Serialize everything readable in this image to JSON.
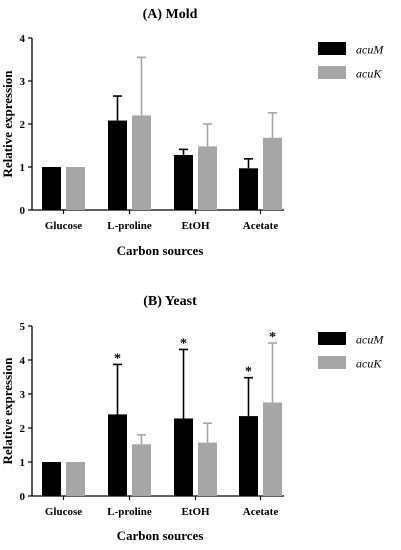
{
  "chart_data": [
    {
      "type": "bar",
      "title": "(A) Mold",
      "xlabel": "Carbon sources",
      "ylabel": "Relative expression",
      "ylim": [
        0,
        4
      ],
      "yticks": [
        0,
        1,
        2,
        3,
        4
      ],
      "categories": [
        "Glucose",
        "L-proline",
        "EtOH",
        "Acetate"
      ],
      "series": [
        {
          "name": "acuM",
          "color": "#000000",
          "values": [
            1.0,
            2.08,
            1.28,
            0.97
          ],
          "errors": [
            0,
            0.57,
            0.13,
            0.22
          ]
        },
        {
          "name": "acuK",
          "color": "#a6a6a6",
          "values": [
            1.0,
            2.2,
            1.48,
            1.68
          ],
          "errors": [
            0,
            1.35,
            0.52,
            0.58
          ]
        }
      ],
      "significance": [],
      "legend": "right"
    },
    {
      "type": "bar",
      "title": "(B) Yeast",
      "xlabel": "Carbon sources",
      "ylabel": "Relative expression",
      "ylim": [
        0,
        5
      ],
      "yticks": [
        0,
        1,
        2,
        3,
        4,
        5
      ],
      "categories": [
        "Glucose",
        "L-proline",
        "EtOH",
        "Acetate"
      ],
      "series": [
        {
          "name": "acuM",
          "color": "#000000",
          "values": [
            1.0,
            2.4,
            2.28,
            2.35
          ],
          "errors": [
            0,
            1.47,
            2.03,
            1.13
          ]
        },
        {
          "name": "acuK",
          "color": "#a6a6a6",
          "values": [
            1.0,
            1.52,
            1.57,
            2.75
          ],
          "errors": [
            0,
            0.28,
            0.57,
            1.75
          ]
        }
      ],
      "significance": [
        {
          "series": 0,
          "category": 1,
          "mark": "*"
        },
        {
          "series": 0,
          "category": 2,
          "mark": "*"
        },
        {
          "series": 0,
          "category": 3,
          "mark": "*"
        },
        {
          "series": 1,
          "category": 3,
          "mark": "*"
        }
      ],
      "legend": "right"
    }
  ]
}
